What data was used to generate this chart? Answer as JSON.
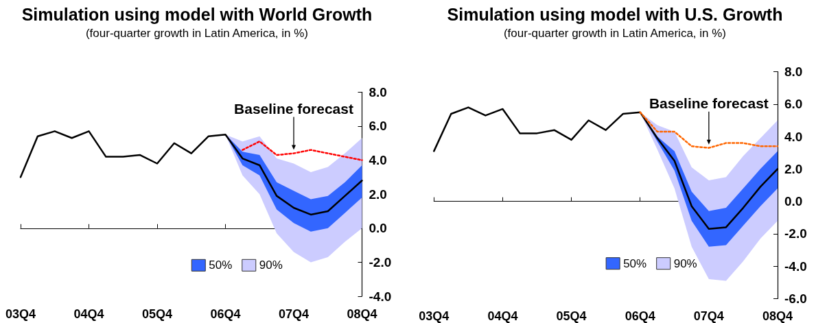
{
  "chart_data": [
    {
      "type": "line",
      "title": "Simulation using model with World Growth",
      "subtitle": "(four-quarter growth in Latin America, in %)",
      "categories": [
        "03Q4",
        null,
        null,
        null,
        "04Q4",
        null,
        null,
        null,
        "05Q4",
        null,
        null,
        null,
        "06Q4",
        null,
        null,
        null,
        "07Q4",
        null,
        null,
        null,
        "08Q4"
      ],
      "ylim": [
        -4,
        8
      ],
      "yticks": [
        {
          "value": -4,
          "label": "-4.0"
        },
        {
          "value": -2,
          "label": "-2.0"
        },
        {
          "value": 0,
          "label": "0.0"
        },
        {
          "value": 2,
          "label": "2.0"
        },
        {
          "value": 4,
          "label": "4.0"
        },
        {
          "value": 6,
          "label": "6.0"
        },
        {
          "value": 8,
          "label": "8.0"
        }
      ],
      "legend": "bottom",
      "annotations": [
        {
          "text": "Baseline forecast",
          "x": "07Q4",
          "y": 4.4
        }
      ],
      "series": [
        {
          "color": "#000000",
          "values": [
            3.0,
            5.4,
            5.7,
            5.3,
            5.7,
            4.2,
            4.2,
            4.3,
            3.8,
            5.0,
            4.4,
            5.4,
            5.5,
            4.1,
            3.7,
            1.9,
            1.2,
            0.8,
            1.0,
            1.9,
            2.8
          ]
        },
        {
          "name": "50%",
          "color": "#3366ff",
          "values": [
            null,
            null,
            null,
            null,
            null,
            null,
            null,
            null,
            null,
            null,
            null,
            null,
            null,
            null,
            null,
            null,
            null,
            null,
            null,
            null,
            null
          ],
          "lower": [
            null,
            null,
            null,
            null,
            null,
            null,
            null,
            null,
            null,
            null,
            null,
            null,
            5.5,
            3.7,
            3.1,
            1.1,
            0.3,
            -0.2,
            0.0,
            0.9,
            1.8
          ],
          "upper": [
            null,
            null,
            null,
            null,
            null,
            null,
            null,
            null,
            null,
            null,
            null,
            null,
            5.5,
            4.5,
            4.3,
            2.7,
            2.2,
            1.7,
            1.9,
            2.7,
            3.7
          ]
        },
        {
          "name": "90%",
          "color": "#ccccff",
          "values": [
            null,
            null,
            null,
            null,
            null,
            null,
            null,
            null,
            null,
            null,
            null,
            null,
            null,
            null,
            null,
            null,
            null,
            null,
            null,
            null,
            null
          ],
          "lower": [
            null,
            null,
            null,
            null,
            null,
            null,
            null,
            null,
            null,
            null,
            null,
            null,
            5.5,
            3.1,
            2.0,
            -0.3,
            -1.4,
            -2.0,
            -1.7,
            -0.8,
            0.0
          ],
          "upper": [
            null,
            null,
            null,
            null,
            null,
            null,
            null,
            null,
            null,
            null,
            null,
            null,
            5.5,
            5.1,
            5.4,
            4.1,
            3.8,
            3.3,
            3.6,
            4.4,
            5.3
          ]
        },
        {
          "color": "#ff0000",
          "line_style": "dotted",
          "values": [
            null,
            null,
            null,
            null,
            null,
            null,
            null,
            null,
            null,
            null,
            null,
            null,
            null,
            4.6,
            5.1,
            4.3,
            4.4,
            4.6,
            4.4,
            4.2,
            4.0
          ]
        }
      ]
    },
    {
      "type": "line",
      "title": "Simulation using model with U.S. Growth",
      "subtitle": "(four-quarter growth in Latin America, in %)",
      "categories": [
        "03Q4",
        null,
        null,
        null,
        "04Q4",
        null,
        null,
        null,
        "05Q4",
        null,
        null,
        null,
        "06Q4",
        null,
        null,
        null,
        "07Q4",
        null,
        null,
        null,
        "08Q4"
      ],
      "ylim": [
        -6,
        8
      ],
      "yticks": [
        {
          "value": -6,
          "label": "-6.0"
        },
        {
          "value": -4,
          "label": "-4.0"
        },
        {
          "value": -2,
          "label": "-2.0"
        },
        {
          "value": 0,
          "label": "0.0"
        },
        {
          "value": 2,
          "label": "2.0"
        },
        {
          "value": 4,
          "label": "4.0"
        },
        {
          "value": 6,
          "label": "6.0"
        },
        {
          "value": 8,
          "label": "8.0"
        }
      ],
      "legend": "bottom",
      "annotations": [
        {
          "text": "Baseline forecast",
          "x": "07Q4",
          "y": 3.3
        }
      ],
      "series": [
        {
          "color": "#000000",
          "values": [
            3.1,
            5.4,
            5.8,
            5.3,
            5.7,
            4.2,
            4.2,
            4.4,
            3.8,
            5.0,
            4.4,
            5.4,
            5.5,
            3.9,
            2.5,
            -0.3,
            -1.7,
            -1.6,
            -0.4,
            0.9,
            2.0
          ]
        },
        {
          "name": "50%",
          "color": "#3366ff",
          "values": [
            null,
            null,
            null,
            null,
            null,
            null,
            null,
            null,
            null,
            null,
            null,
            null,
            null,
            null,
            null,
            null,
            null,
            null,
            null,
            null,
            null
          ],
          "lower": [
            null,
            null,
            null,
            null,
            null,
            null,
            null,
            null,
            null,
            null,
            null,
            null,
            5.5,
            3.7,
            1.9,
            -1.2,
            -2.8,
            -2.7,
            -1.5,
            -0.3,
            0.8
          ],
          "upper": [
            null,
            null,
            null,
            null,
            null,
            null,
            null,
            null,
            null,
            null,
            null,
            null,
            5.5,
            4.0,
            3.1,
            0.6,
            -0.6,
            -0.4,
            0.8,
            2.0,
            3.1
          ]
        },
        {
          "name": "90%",
          "color": "#ccccff",
          "values": [
            null,
            null,
            null,
            null,
            null,
            null,
            null,
            null,
            null,
            null,
            null,
            null,
            null,
            null,
            null,
            null,
            null,
            null,
            null,
            null,
            null
          ],
          "lower": [
            null,
            null,
            null,
            null,
            null,
            null,
            null,
            null,
            null,
            null,
            null,
            null,
            5.5,
            3.2,
            0.8,
            -2.8,
            -4.8,
            -4.9,
            -3.7,
            -2.3,
            -1.2
          ],
          "upper": [
            null,
            null,
            null,
            null,
            null,
            null,
            null,
            null,
            null,
            null,
            null,
            null,
            5.5,
            4.7,
            4.3,
            2.1,
            1.3,
            1.5,
            2.8,
            3.9,
            5.0
          ]
        },
        {
          "color": "#ff6600",
          "line_style": "dotted",
          "values": [
            null,
            null,
            null,
            null,
            null,
            null,
            null,
            null,
            null,
            null,
            null,
            null,
            5.5,
            4.3,
            4.3,
            3.4,
            3.3,
            3.6,
            3.6,
            3.4,
            3.4
          ]
        }
      ]
    }
  ]
}
